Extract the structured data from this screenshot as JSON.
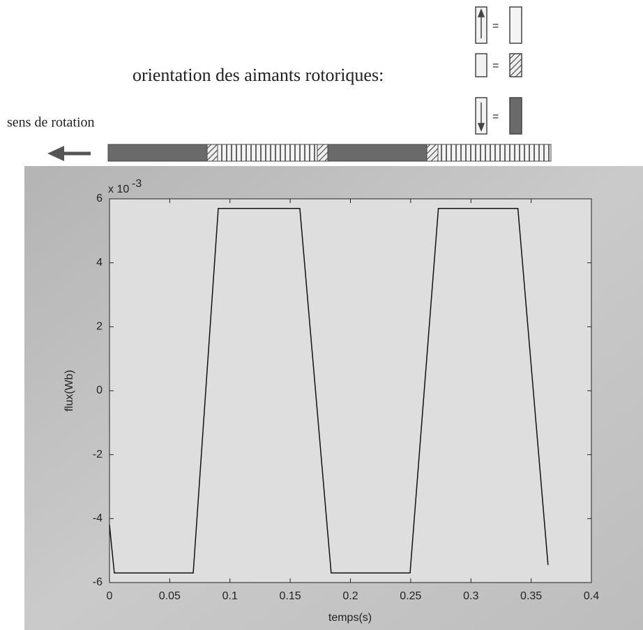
{
  "chart_data": {
    "type": "line",
    "xlabel": "temps(s)",
    "ylabel": "flux(Wb)",
    "exponent_label": {
      "base": "x 10",
      "power": "-3"
    },
    "annotations": {
      "orientation": "orientation des aimants rotoriques:",
      "rotation": "sens de rotation",
      "equals": [
        "=",
        "=",
        "="
      ]
    },
    "x": [
      0,
      0.004,
      0.0695,
      0.0903,
      0.158,
      0.184,
      0.2495,
      0.273,
      0.339,
      0.364
    ],
    "values": [
      -4.2,
      -5.7,
      -5.7,
      5.7,
      5.7,
      -5.7,
      -5.7,
      5.7,
      5.7,
      -5.45
    ],
    "color": "#111111",
    "xlim": [
      0,
      0.4
    ],
    "xticks": [
      0,
      0.05,
      0.1,
      0.15,
      0.2,
      0.25,
      0.3,
      0.35,
      0.4
    ],
    "ylim": [
      -6,
      6
    ],
    "yticks": [
      -6,
      -4,
      -2,
      0,
      2,
      4,
      6
    ]
  }
}
